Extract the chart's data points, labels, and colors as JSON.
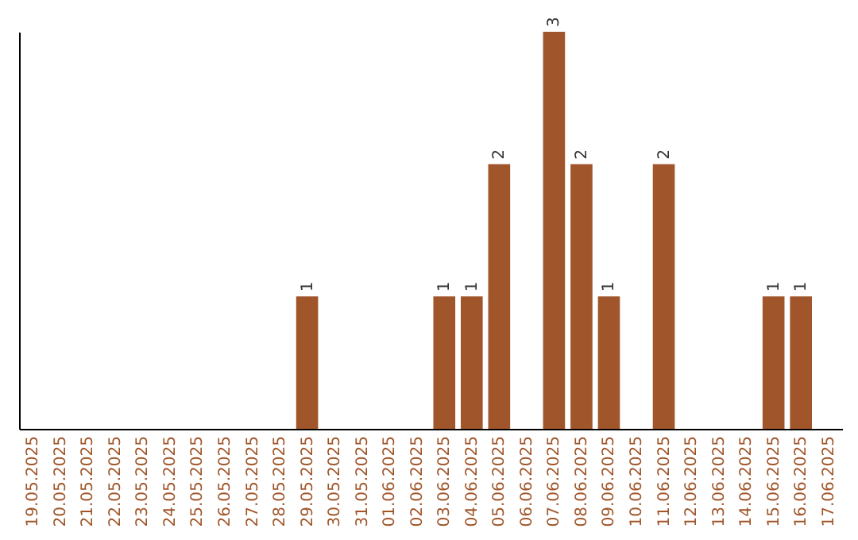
{
  "chart_data": {
    "type": "bar",
    "categories": [
      "19.05.2025",
      "20.05.2025",
      "21.05.2025",
      "22.05.2025",
      "23.05.2025",
      "24.05.2025",
      "25.05.2025",
      "26.05.2025",
      "27.05.2025",
      "28.05.2025",
      "29.05.2025",
      "30.05.2025",
      "31.05.2025",
      "01.06.2025",
      "02.06.2025",
      "03.06.2025",
      "04.06.2025",
      "05.06.2025",
      "06.06.2025",
      "07.06.2025",
      "08.06.2025",
      "09.06.2025",
      "10.06.2025",
      "11.06.2025",
      "12.06.2025",
      "13.06.2025",
      "14.06.2025",
      "15.06.2025",
      "16.06.2025",
      "17.06.2025"
    ],
    "values": [
      0,
      0,
      0,
      0,
      0,
      0,
      0,
      0,
      0,
      0,
      1,
      0,
      0,
      0,
      0,
      1,
      1,
      2,
      0,
      3,
      2,
      1,
      0,
      2,
      0,
      0,
      0,
      1,
      1,
      0
    ],
    "value_labels": [
      null,
      null,
      null,
      null,
      null,
      null,
      null,
      null,
      null,
      null,
      "1",
      null,
      null,
      null,
      null,
      "1",
      "1",
      "2",
      null,
      "3",
      "2",
      "1",
      null,
      "2",
      null,
      null,
      null,
      "1",
      "1",
      null
    ],
    "color": "#a0562a",
    "tick_labels": "x",
    "grid": false
  }
}
